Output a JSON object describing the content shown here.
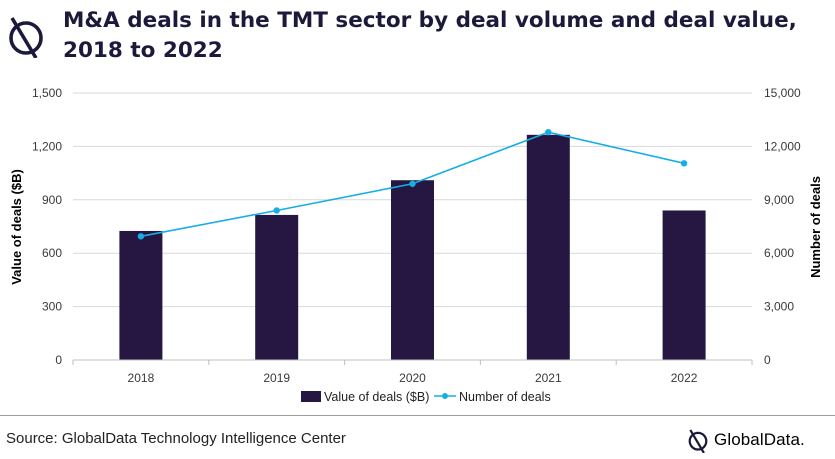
{
  "header": {
    "title": "M&A deals in the TMT sector by deal volume and deal value, 2018 to 2022"
  },
  "footer": {
    "source": "Source: GlobalData Technology Intelligence Center",
    "brand": "GlobalData."
  },
  "colors": {
    "bar": "#251741",
    "line": "#17aee8",
    "title": "#1c1a3b",
    "grid": "#d9d9d9"
  },
  "chart_data": {
    "type": "bar",
    "categories": [
      "2018",
      "2019",
      "2020",
      "2021",
      "2022"
    ],
    "series": [
      {
        "name": "Value of deals ($B)",
        "type": "bar",
        "axis": "left",
        "values": [
          725,
          815,
          1010,
          1265,
          840
        ]
      },
      {
        "name": "Number of deals",
        "type": "line",
        "axis": "right",
        "values": [
          6950,
          8400,
          9900,
          12800,
          11050
        ]
      }
    ],
    "ylabel": "Value of deals ($B)",
    "y2label": "Number of deals",
    "ylim": [
      0,
      1500
    ],
    "y2lim": [
      0,
      15000
    ],
    "yticks": [
      "0",
      "300",
      "600",
      "900",
      "1,200",
      "1,500"
    ],
    "y2ticks": [
      "0",
      "3,000",
      "6,000",
      "9,000",
      "12,000",
      "15,000"
    ],
    "grid": true,
    "legend": "bottom"
  }
}
